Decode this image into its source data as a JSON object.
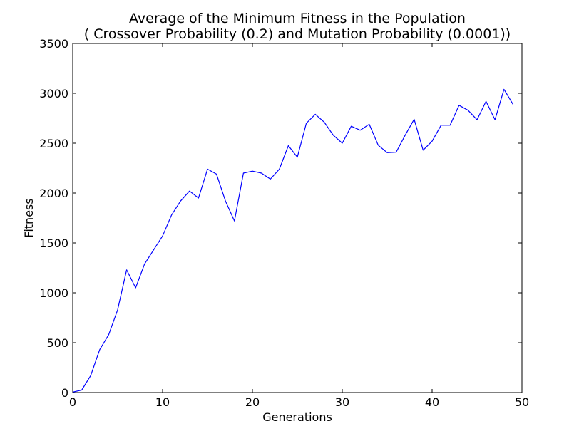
{
  "chart_data": {
    "type": "line",
    "title": "Average of the Minimum Fitness in the Population",
    "subtitle": "( Crossover Probability (0.2) and Mutation Probability (0.0001))",
    "xlabel": "Generations",
    "ylabel": "Fitness",
    "xlim": [
      0,
      50
    ],
    "ylim": [
      0,
      3500
    ],
    "xticks": [
      0,
      10,
      20,
      30,
      40,
      50
    ],
    "yticks": [
      0,
      500,
      1000,
      1500,
      2000,
      2500,
      3000,
      3500
    ],
    "grid": false,
    "series": [
      {
        "color": "#0000ff",
        "x": [
          0,
          1,
          2,
          3,
          4,
          5,
          6,
          7,
          8,
          9,
          10,
          11,
          12,
          13,
          14,
          15,
          16,
          17,
          18,
          19,
          20,
          21,
          22,
          23,
          24,
          25,
          26,
          27,
          28,
          29,
          30,
          31,
          32,
          33,
          34,
          35,
          36,
          37,
          38,
          39,
          40,
          41,
          42,
          43,
          44,
          45,
          46,
          47,
          48,
          49
        ],
        "y": [
          5,
          25,
          170,
          430,
          580,
          830,
          1230,
          1050,
          1290,
          1430,
          1570,
          1780,
          1920,
          2020,
          1950,
          2240,
          2190,
          1920,
          1720,
          2200,
          2220,
          2200,
          2140,
          2240,
          2475,
          2360,
          2700,
          2790,
          2710,
          2580,
          2500,
          2670,
          2630,
          2690,
          2480,
          2405,
          2410,
          2580,
          2740,
          2430,
          2520,
          2680,
          2680,
          2880,
          2830,
          2735,
          2920,
          2735,
          3040,
          2890
        ]
      }
    ]
  }
}
